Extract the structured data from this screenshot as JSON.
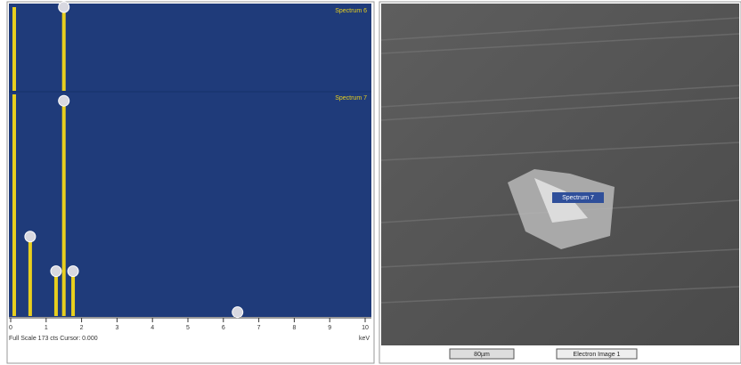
{
  "chart_data": {
    "type": "spectrum",
    "x_unit": "keV",
    "footer": "Full Scale 173 cts Cursor: 0.000",
    "x": [
      0.1,
      0.55,
      1.28,
      1.5,
      1.76,
      6.4
    ],
    "series": [
      {
        "name": "Spectrum 6",
        "color": "#e8cf1e",
        "values": [
          173,
          null,
          null,
          173,
          null,
          null
        ]
      },
      {
        "name": "Spectrum 7",
        "color": "#e8cf1e",
        "values": [
          173,
          62,
          35,
          168,
          35,
          3
        ]
      }
    ],
    "xlim": [
      0,
      10
    ],
    "xticks": [
      0,
      1,
      2,
      3,
      4,
      5,
      6,
      7,
      8,
      9,
      10
    ],
    "ylim": [
      0,
      173
    ]
  },
  "image": {
    "label": "Spectrum 7",
    "scale_bar": "80µm",
    "caption": "Electron Image 1"
  }
}
